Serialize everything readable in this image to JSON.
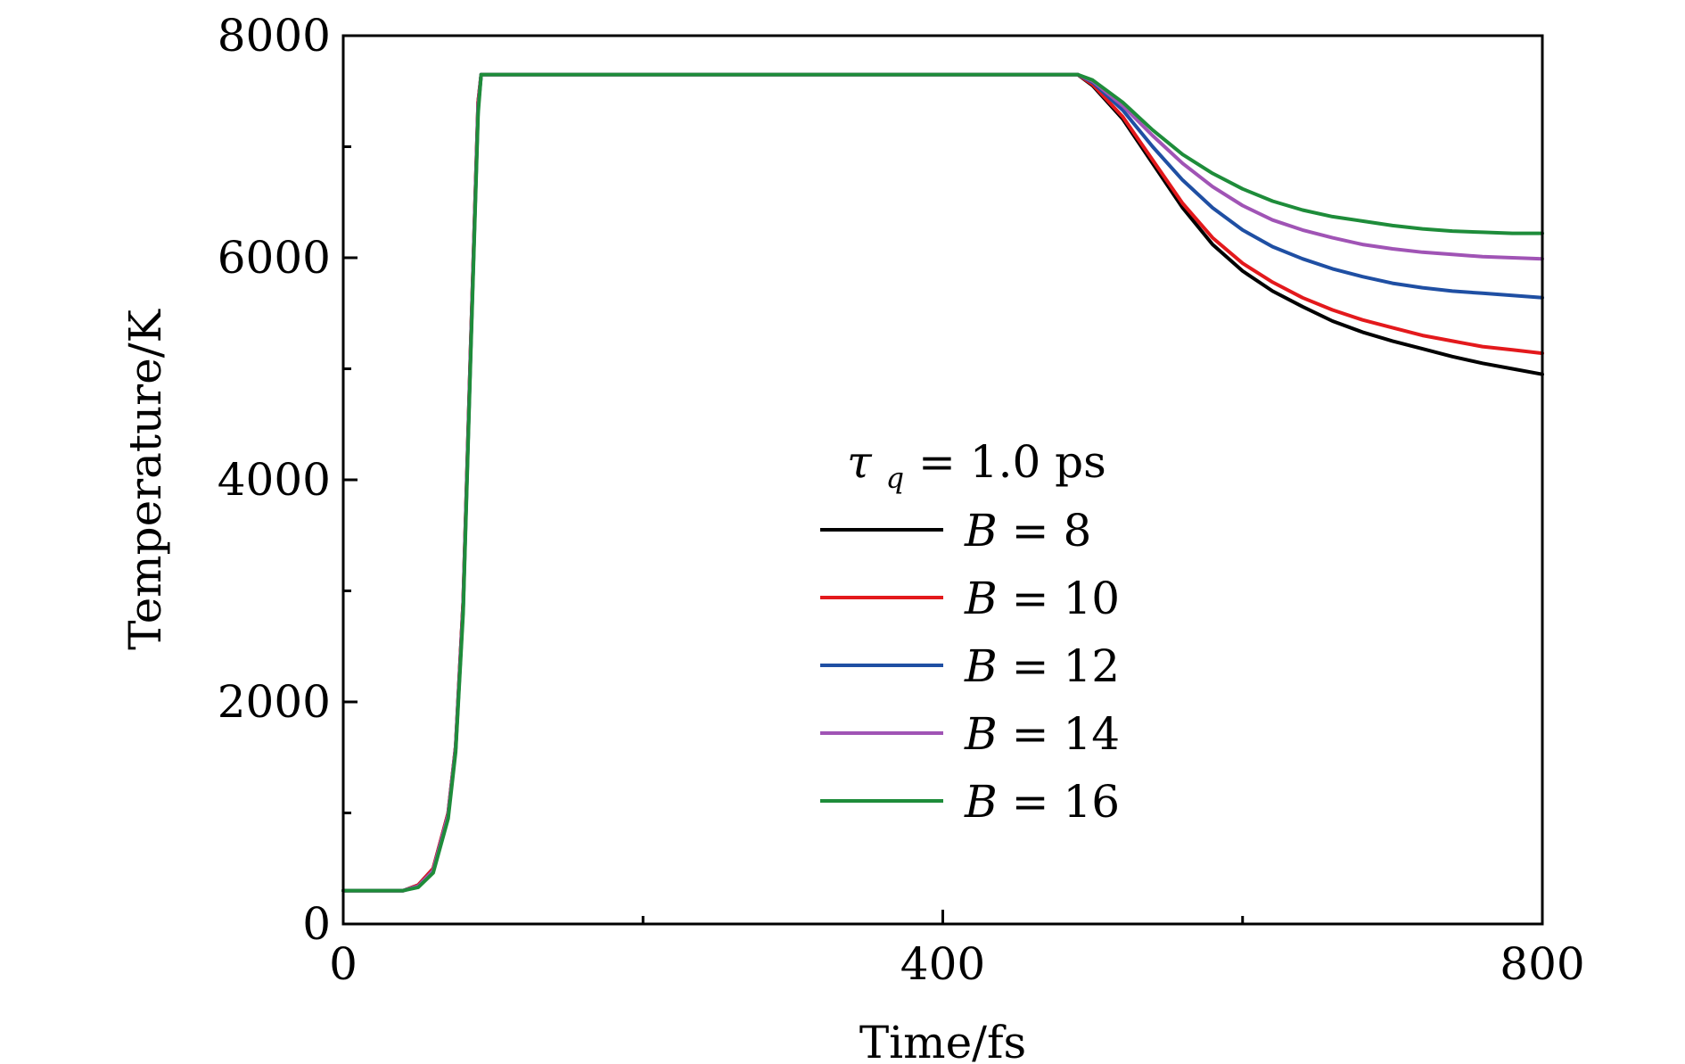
{
  "chart_data": {
    "type": "line",
    "title": "",
    "xlabel": "Time/fs",
    "ylabel": "Temperature/K",
    "xlim": [
      0,
      800
    ],
    "ylim": [
      0,
      8000
    ],
    "x_ticks": [
      "0",
      "400",
      "800"
    ],
    "y_ticks": [
      "0",
      "2000",
      "4000",
      "6000",
      "8000"
    ],
    "grid": false,
    "legend": {
      "placement": "center-right",
      "title": "τq = 1.0 ps",
      "title_symbol": "τ",
      "title_subscript": "q",
      "title_rest": " = 1.0 ps"
    },
    "x": [
      0,
      40,
      50,
      60,
      70,
      75,
      80,
      85,
      90,
      92,
      95,
      100,
      200,
      300,
      400,
      480,
      490,
      500,
      520,
      540,
      560,
      580,
      600,
      620,
      640,
      660,
      680,
      700,
      720,
      740,
      760,
      780,
      800
    ],
    "series": [
      {
        "name": "B = 8",
        "label_var": "B",
        "label_val": "8",
        "color": "#000000",
        "values": [
          300,
          300,
          350,
          500,
          1000,
          1600,
          2900,
          5200,
          7400,
          7650,
          7650,
          7650,
          7650,
          7650,
          7650,
          7650,
          7650,
          7550,
          7250,
          6850,
          6450,
          6120,
          5880,
          5700,
          5560,
          5430,
          5330,
          5250,
          5180,
          5110,
          5050,
          5000,
          4950
        ]
      },
      {
        "name": "B = 10",
        "label_var": "B",
        "label_val": "10",
        "color": "#e3191c",
        "values": [
          300,
          300,
          350,
          500,
          1000,
          1600,
          2900,
          5200,
          7400,
          7650,
          7650,
          7650,
          7650,
          7650,
          7650,
          7650,
          7650,
          7560,
          7270,
          6880,
          6490,
          6180,
          5950,
          5780,
          5640,
          5530,
          5440,
          5370,
          5300,
          5250,
          5200,
          5170,
          5140
        ]
      },
      {
        "name": "B = 12",
        "label_var": "B",
        "label_val": "12",
        "color": "#1f4fa3",
        "values": [
          300,
          300,
          340,
          480,
          980,
          1580,
          2850,
          5150,
          7350,
          7650,
          7650,
          7650,
          7650,
          7650,
          7650,
          7650,
          7650,
          7580,
          7330,
          7000,
          6700,
          6450,
          6250,
          6100,
          5990,
          5900,
          5830,
          5770,
          5730,
          5700,
          5680,
          5660,
          5640
        ]
      },
      {
        "name": "B = 14",
        "label_var": "B",
        "label_val": "14",
        "color": "#a054b5",
        "values": [
          300,
          300,
          340,
          480,
          980,
          1580,
          2850,
          5150,
          7350,
          7650,
          7650,
          7650,
          7650,
          7650,
          7650,
          7650,
          7650,
          7590,
          7370,
          7100,
          6850,
          6640,
          6470,
          6340,
          6250,
          6180,
          6120,
          6080,
          6050,
          6030,
          6010,
          6000,
          5990
        ]
      },
      {
        "name": "B = 16",
        "label_var": "B",
        "label_val": "16",
        "color": "#1e8c3a",
        "values": [
          300,
          300,
          330,
          460,
          950,
          1550,
          2800,
          5100,
          7300,
          7650,
          7650,
          7650,
          7650,
          7650,
          7650,
          7650,
          7650,
          7600,
          7400,
          7150,
          6930,
          6760,
          6620,
          6510,
          6430,
          6370,
          6330,
          6290,
          6260,
          6240,
          6230,
          6220,
          6220
        ]
      }
    ]
  }
}
